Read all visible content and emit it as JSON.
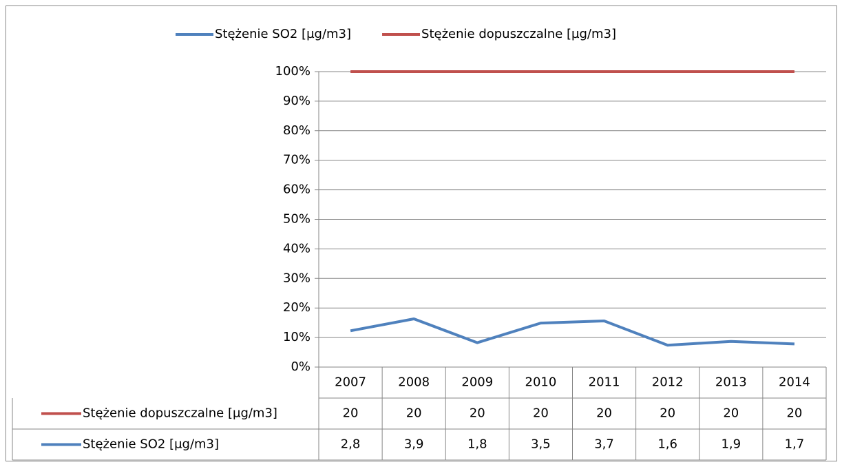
{
  "chart_data": {
    "type": "line",
    "stacking": "percent",
    "categories": [
      "2007",
      "2008",
      "2009",
      "2010",
      "2011",
      "2012",
      "2013",
      "2014"
    ],
    "series": [
      {
        "name": "Stężenie SO2 [µg/m3]",
        "color": "#4f81bd",
        "values": [
          2.8,
          3.9,
          1.8,
          3.5,
          3.7,
          1.6,
          1.9,
          1.7
        ],
        "value_labels": [
          "2,8",
          "3,9",
          "1,8",
          "3,5",
          "3,7",
          "1,6",
          "1,9",
          "1,7"
        ]
      },
      {
        "name": "Stężenie dopuszczalne [µg/m3]",
        "color": "#c0504d",
        "values": [
          20,
          20,
          20,
          20,
          20,
          20,
          20,
          20
        ]
      }
    ],
    "ylim": [
      0,
      100
    ],
    "yticks": [
      {
        "value": 0,
        "label": "0%"
      },
      {
        "value": 10,
        "label": "10%"
      },
      {
        "value": 20,
        "label": "20%"
      },
      {
        "value": 30,
        "label": "30%"
      },
      {
        "value": 40,
        "label": "40%"
      },
      {
        "value": 50,
        "label": "50%"
      },
      {
        "value": 60,
        "label": "60%"
      },
      {
        "value": 70,
        "label": "70%"
      },
      {
        "value": 80,
        "label": "80%"
      },
      {
        "value": 90,
        "label": "90%"
      },
      {
        "value": 100,
        "label": "100%"
      }
    ],
    "grid": true,
    "legend": "top",
    "data_table": true
  }
}
